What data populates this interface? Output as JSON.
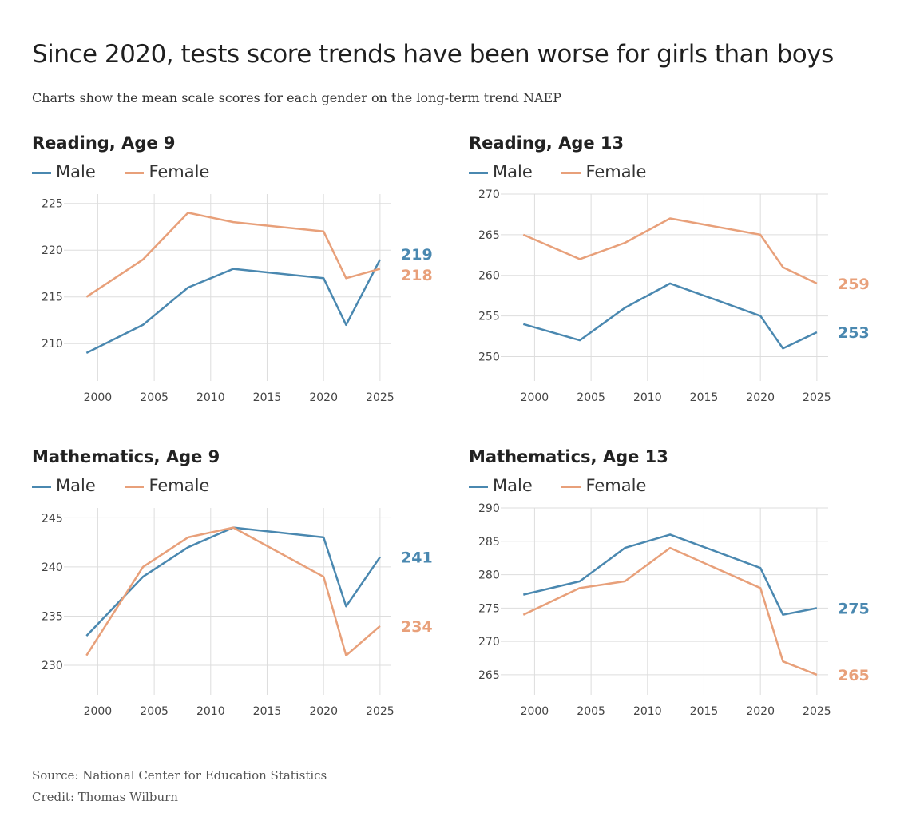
{
  "header": {
    "title": "Since 2020, tests score trends have been worse for girls than boys",
    "subtitle": "Charts show the mean scale scores for each gender on the long-term trend NAEP"
  },
  "footer": {
    "source": "Source: National Center for Education Statistics",
    "credit": "Credit: Thomas Wilburn"
  },
  "colors": {
    "male": "#4a88b0",
    "female": "#e8a07a",
    "grid": "#dddddd",
    "axis_text": "#444444"
  },
  "chart_data": [
    {
      "type": "line",
      "title": "Reading, Age 9",
      "legend": [
        "Male",
        "Female"
      ],
      "legend_position": "top-left",
      "grid": true,
      "x": [
        1999,
        2004,
        2008,
        2012,
        2020,
        2022,
        2025
      ],
      "xticks": [
        2000,
        2005,
        2010,
        2015,
        2020,
        2025
      ],
      "xlim": [
        1997,
        2026
      ],
      "ylim": [
        206,
        226
      ],
      "yticks": [
        210,
        215,
        220,
        225
      ],
      "series": [
        {
          "name": "Male",
          "values": [
            209,
            212,
            216,
            218,
            217,
            212,
            219
          ],
          "end_label": "219"
        },
        {
          "name": "Female",
          "values": [
            215,
            219,
            224,
            223,
            222,
            217,
            218
          ],
          "end_label": "218"
        }
      ]
    },
    {
      "type": "line",
      "title": "Reading, Age 13",
      "legend": [
        "Male",
        "Female"
      ],
      "legend_position": "top-left",
      "grid": true,
      "x": [
        1999,
        2004,
        2008,
        2012,
        2020,
        2022,
        2025
      ],
      "xticks": [
        2000,
        2005,
        2010,
        2015,
        2020,
        2025
      ],
      "xlim": [
        1997,
        2026
      ],
      "ylim": [
        247,
        270
      ],
      "yticks": [
        250,
        255,
        260,
        265,
        270
      ],
      "series": [
        {
          "name": "Male",
          "values": [
            254,
            252,
            256,
            259,
            255,
            251,
            253
          ],
          "end_label": "253"
        },
        {
          "name": "Female",
          "values": [
            265,
            262,
            264,
            267,
            265,
            261,
            259
          ],
          "end_label": "259"
        }
      ]
    },
    {
      "type": "line",
      "title": "Mathematics, Age 9",
      "legend": [
        "Male",
        "Female"
      ],
      "legend_position": "top-left",
      "grid": true,
      "x": [
        1999,
        2004,
        2008,
        2012,
        2020,
        2022,
        2025
      ],
      "xticks": [
        2000,
        2005,
        2010,
        2015,
        2020,
        2025
      ],
      "xlim": [
        1997,
        2026
      ],
      "ylim": [
        227,
        246
      ],
      "yticks": [
        230,
        235,
        240,
        245
      ],
      "series": [
        {
          "name": "Male",
          "values": [
            233,
            239,
            242,
            244,
            243,
            236,
            241
          ],
          "end_label": "241"
        },
        {
          "name": "Female",
          "values": [
            231,
            240,
            243,
            244,
            239,
            231,
            234
          ],
          "end_label": "234"
        }
      ]
    },
    {
      "type": "line",
      "title": "Mathematics, Age 13",
      "legend": [
        "Male",
        "Female"
      ],
      "legend_position": "top-left",
      "grid": true,
      "x": [
        1999,
        2004,
        2008,
        2012,
        2020,
        2022,
        2025
      ],
      "xticks": [
        2000,
        2005,
        2010,
        2015,
        2020,
        2025
      ],
      "xlim": [
        1997,
        2026
      ],
      "ylim": [
        262,
        290
      ],
      "yticks": [
        265,
        270,
        275,
        280,
        285,
        290
      ],
      "series": [
        {
          "name": "Male",
          "values": [
            277,
            279,
            284,
            286,
            281,
            274,
            275
          ],
          "end_label": "275"
        },
        {
          "name": "Female",
          "values": [
            274,
            278,
            279,
            284,
            278,
            267,
            265
          ],
          "end_label": "265"
        }
      ]
    }
  ]
}
